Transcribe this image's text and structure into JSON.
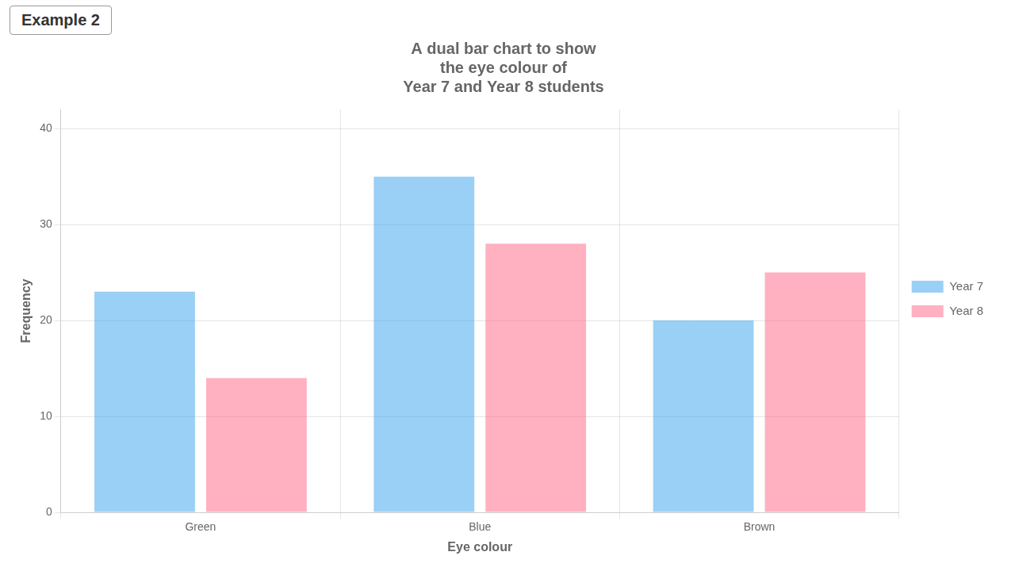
{
  "chart_data": {
    "type": "bar",
    "title": "A dual bar chart to show\nthe eye colour of\nYear 7 and Year 8 students",
    "xlabel": "Eye colour",
    "ylabel": "Frequency",
    "categories": [
      "Green",
      "Blue",
      "Brown"
    ],
    "series": [
      {
        "name": "Year 7",
        "values": [
          23,
          35,
          20
        ]
      },
      {
        "name": "Year 8",
        "values": [
          14,
          28,
          25
        ]
      }
    ],
    "ylim": [
      0,
      42
    ],
    "yticks": [
      0,
      10,
      20,
      30,
      40
    ],
    "grid": true,
    "legend": "right",
    "annotations": [
      "Example 2"
    ]
  }
}
